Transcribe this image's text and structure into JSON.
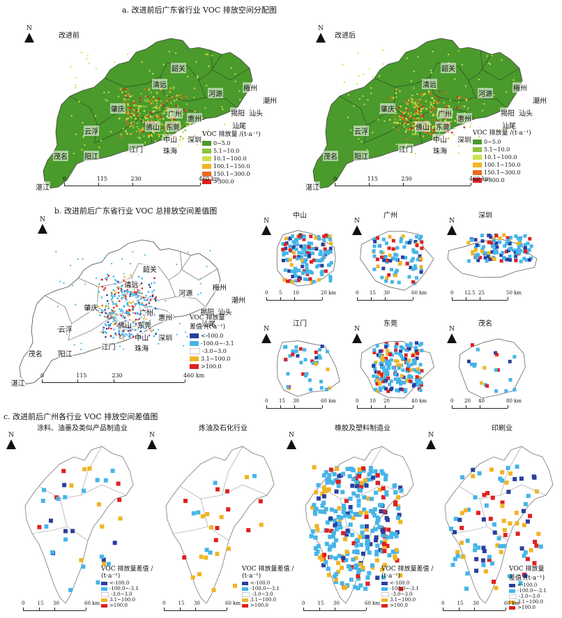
{
  "section_a": {
    "title": "a. 改进前后广东省行业 VOC 排放空间分配图",
    "before_label": "改进前",
    "after_label": "改进后",
    "legend_title": "VOC 排放量 /(t·a⁻¹)",
    "legend": [
      {
        "label": "0~5.0",
        "color": "#4a9a2c"
      },
      {
        "label": "5.1~10.0",
        "color": "#8cc43a"
      },
      {
        "label": "10.1~100.0",
        "color": "#cde14a"
      },
      {
        "label": "100.1~150.0",
        "color": "#f0b424"
      },
      {
        "label": "150.1~300.0",
        "color": "#ec6a1e"
      },
      {
        "label": ">300.0",
        "color": "#e02020"
      }
    ],
    "scale_labels": [
      "0",
      "115",
      "230",
      "460 km"
    ],
    "cities": [
      "韶关",
      "清远",
      "河源",
      "梅州",
      "潮州",
      "肇庆",
      "广州",
      "惠州",
      "揭阳",
      "汕头",
      "佛山",
      "东莞",
      "汕尾",
      "云浮",
      "中山",
      "深圳",
      "茂名",
      "阳江",
      "江门",
      "珠海",
      "湛江"
    ]
  },
  "section_b": {
    "title": "b. 改进前后广东省行业 VOC 总排放空间差值图",
    "legend_title_1": "VOC 排放量",
    "legend_title_2": "差值 /(t·a⁻¹)",
    "legend": [
      {
        "label": "<-100.0",
        "color": "#2a3f9e"
      },
      {
        "label": "-100.0~-3.1",
        "color": "#45b5e8"
      },
      {
        "label": "-3.0~3.0",
        "color": "#ffffff"
      },
      {
        "label": "3.1~100.0",
        "color": "#f0b424"
      },
      {
        "label": ">100.0",
        "color": "#e02020"
      }
    ],
    "scale_labels": [
      "0",
      "115",
      "230",
      "460 km"
    ],
    "zooms": [
      {
        "name": "中山",
        "scale": [
          "0",
          "5",
          "10",
          "20 km"
        ]
      },
      {
        "name": "广州",
        "scale": [
          "0",
          "15",
          "30",
          "60 km"
        ]
      },
      {
        "name": "深圳",
        "scale": [
          "0",
          "12.5",
          "25",
          "50 km"
        ]
      },
      {
        "name": "江门",
        "scale": [
          "0",
          "15",
          "30",
          "60 km"
        ]
      },
      {
        "name": "东莞",
        "scale": [
          "0",
          "10",
          "20",
          "40 km"
        ]
      },
      {
        "name": "茂名",
        "scale": [
          "0",
          "20",
          "40",
          "80 km"
        ]
      }
    ]
  },
  "section_c": {
    "title": "c. 改进前后广州各行业 VOC 排放空间差值图",
    "panels": [
      {
        "name": "涂料、油墨及类似产品制造业",
        "legend_title_1": "VOC 排放量差值 /",
        "legend_title_2": "(t·a⁻¹)"
      },
      {
        "name": "炼油及石化行业",
        "legend_title_1": "VOC 排放量差值 /",
        "legend_title_2": "(t·a⁻¹)"
      },
      {
        "name": "橡胶及塑料制造业",
        "legend_title_1": "VOC 排放量差值 /",
        "legend_title_2": "(t·a⁻¹)"
      },
      {
        "name": "印刷业",
        "legend_title_1": "VOC 排放量",
        "legend_title_2": "差值 /(t·a⁻¹)"
      }
    ],
    "legend": [
      {
        "label": "<-100.0",
        "color": "#2a3f9e"
      },
      {
        "label": "-100.0~-3.1",
        "color": "#45b5e8"
      },
      {
        "label": "-3.0~3.0",
        "color": "#ffffff"
      },
      {
        "label": "3.1~100.0",
        "color": "#f0b424"
      },
      {
        "label": ">100.0",
        "color": "#e02020"
      }
    ],
    "scale_labels": [
      "0",
      "15",
      "30",
      "60 km"
    ]
  },
  "north_label": "N"
}
